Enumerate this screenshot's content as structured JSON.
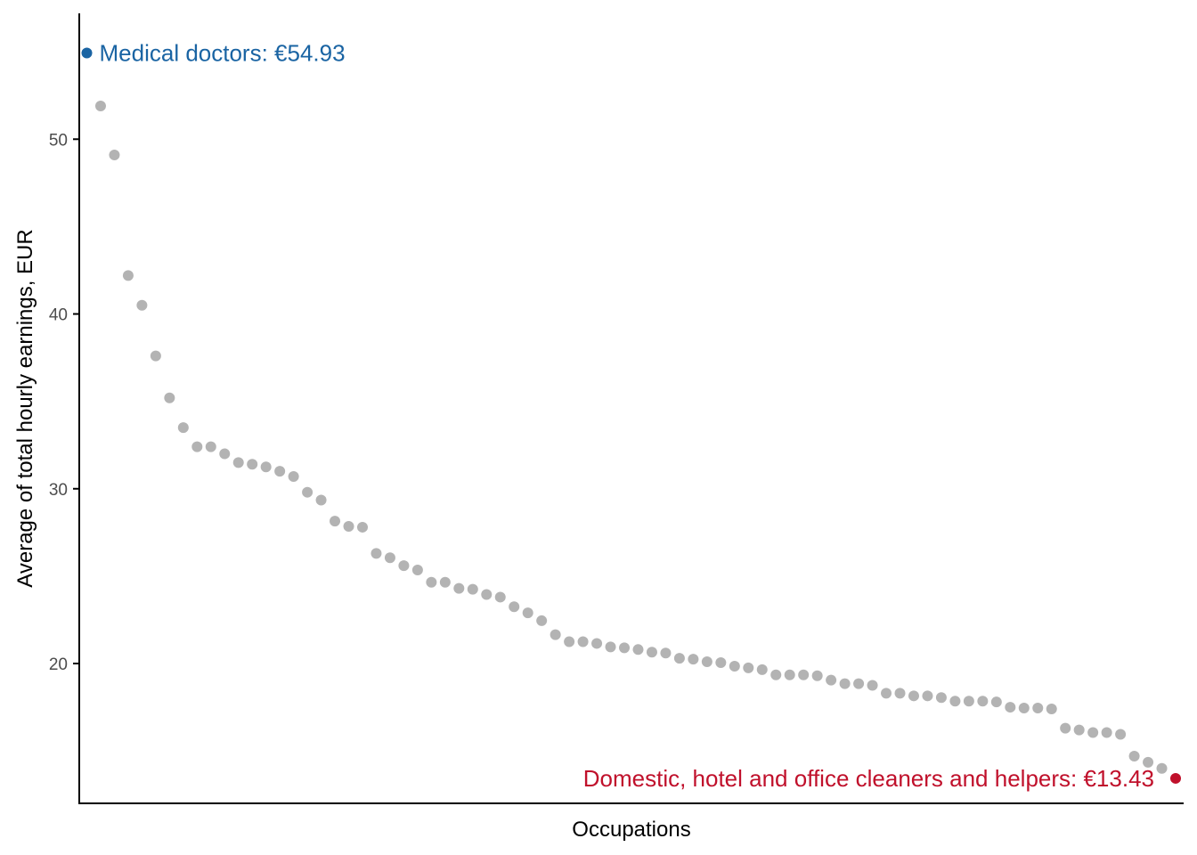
{
  "chart_data": {
    "type": "scatter",
    "title": "",
    "xlabel": "Occupations",
    "ylabel": "Average of total hourly earnings, EUR",
    "ylim": [
      12.0,
      57.2
    ],
    "y_ticks": [
      20,
      30,
      40,
      50
    ],
    "y_tick_labels": [
      "20",
      "30",
      "40",
      "50"
    ],
    "x_ticks_shown": false,
    "grid": false,
    "legend": "none",
    "colors": {
      "point": "#b3b3b3",
      "highlight_high": "#1a64a3",
      "highlight_low": "#c0102b",
      "axis": "#000000"
    },
    "points_y": [
      54.93,
      51.9,
      49.1,
      42.2,
      40.5,
      37.6,
      35.2,
      33.5,
      32.4,
      32.4,
      32.0,
      31.5,
      31.4,
      31.25,
      31.0,
      30.7,
      29.8,
      29.35,
      28.15,
      27.85,
      27.8,
      26.3,
      26.05,
      25.6,
      25.35,
      24.65,
      24.65,
      24.3,
      24.25,
      23.95,
      23.8,
      23.25,
      22.9,
      22.45,
      21.65,
      21.25,
      21.25,
      21.15,
      20.95,
      20.9,
      20.8,
      20.65,
      20.6,
      20.3,
      20.25,
      20.1,
      20.05,
      19.85,
      19.75,
      19.65,
      19.35,
      19.35,
      19.35,
      19.3,
      19.05,
      18.85,
      18.85,
      18.75,
      18.3,
      18.3,
      18.15,
      18.15,
      18.05,
      17.85,
      17.85,
      17.85,
      17.8,
      17.5,
      17.45,
      17.45,
      17.4,
      16.3,
      16.2,
      16.05,
      16.05,
      15.95,
      14.7,
      14.35,
      14.0,
      13.43
    ],
    "annotations": [
      {
        "index": 0,
        "label": "Medical doctors: €54.93",
        "color": "#1a64a3",
        "side": "right"
      },
      {
        "index": 79,
        "label": "Domestic, hotel and office cleaners and helpers: €13.43",
        "color": "#c0102b",
        "side": "left"
      }
    ]
  }
}
